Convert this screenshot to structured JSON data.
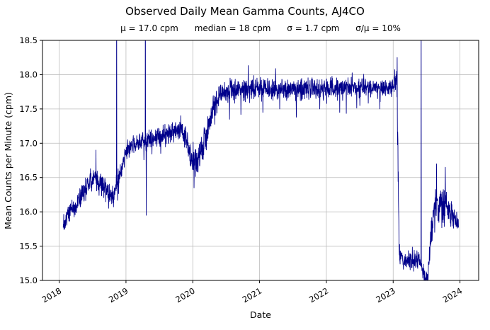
{
  "chart_data": {
    "type": "line",
    "title": "Observed Daily Mean Gamma Counts, AJ4CO",
    "subtitle": "μ = 17.0 cpm      median = 18 cpm      σ = 1.7 cpm      σ/μ = 10%",
    "stats": {
      "mu_cpm": 17.0,
      "median_cpm": 18,
      "sigma_cpm": 1.7,
      "sigma_over_mu_pct": 10
    },
    "xlabel": "Date",
    "ylabel": "Mean Counts per Minute (cpm)",
    "xlim": [
      2017.75,
      2024.28
    ],
    "ylim": [
      15.0,
      18.5
    ],
    "xticks": [
      2018,
      2019,
      2020,
      2021,
      2022,
      2023,
      2024
    ],
    "yticks": [
      15.0,
      15.5,
      16.0,
      16.5,
      17.0,
      17.5,
      18.0,
      18.5
    ],
    "grid": true,
    "legend": "none",
    "line_color": "#00008b",
    "grid_color": "#bdbdbd",
    "series_name": "daily mean gamma counts",
    "data_start": 2018.06,
    "data_end": 2023.98,
    "samples_per_year": 365,
    "noise_seed": 1337,
    "trend": [
      [
        2018.06,
        15.82,
        0.1
      ],
      [
        2018.14,
        16.0,
        0.09
      ],
      [
        2018.22,
        16.05,
        0.09
      ],
      [
        2018.32,
        16.2,
        0.09
      ],
      [
        2018.42,
        16.38,
        0.09
      ],
      [
        2018.52,
        16.5,
        0.1
      ],
      [
        2018.62,
        16.45,
        0.1
      ],
      [
        2018.72,
        16.28,
        0.09
      ],
      [
        2018.8,
        16.25,
        0.1
      ],
      [
        2018.87,
        16.45,
        0.1
      ],
      [
        2018.94,
        16.65,
        0.09
      ],
      [
        2019.02,
        16.92,
        0.08
      ],
      [
        2019.12,
        17.0,
        0.08
      ],
      [
        2019.25,
        17.02,
        0.08
      ],
      [
        2019.4,
        17.08,
        0.08
      ],
      [
        2019.55,
        17.12,
        0.09
      ],
      [
        2019.7,
        17.18,
        0.09
      ],
      [
        2019.82,
        17.22,
        0.09
      ],
      [
        2019.9,
        17.05,
        0.12
      ],
      [
        2019.98,
        16.75,
        0.14
      ],
      [
        2020.06,
        16.7,
        0.15
      ],
      [
        2020.14,
        16.95,
        0.12
      ],
      [
        2020.22,
        17.2,
        0.12
      ],
      [
        2020.32,
        17.55,
        0.1
      ],
      [
        2020.42,
        17.75,
        0.09
      ],
      [
        2020.6,
        17.78,
        0.09
      ],
      [
        2021.0,
        17.8,
        0.09
      ],
      [
        2021.5,
        17.8,
        0.09
      ],
      [
        2022.0,
        17.8,
        0.09
      ],
      [
        2022.5,
        17.82,
        0.09
      ],
      [
        2022.9,
        17.8,
        0.09
      ],
      [
        2023.02,
        17.85,
        0.1
      ],
      [
        2023.05,
        18.0,
        0.12
      ],
      [
        2023.07,
        17.0,
        0.2
      ],
      [
        2023.09,
        15.4,
        0.1
      ],
      [
        2023.15,
        15.3,
        0.08
      ],
      [
        2023.3,
        15.28,
        0.08
      ],
      [
        2023.4,
        15.3,
        0.08
      ],
      [
        2023.46,
        15.05,
        0.08
      ],
      [
        2023.52,
        15.0,
        0.08
      ],
      [
        2023.56,
        15.6,
        0.15
      ],
      [
        2023.62,
        16.05,
        0.18
      ],
      [
        2023.72,
        16.1,
        0.18
      ],
      [
        2023.82,
        16.05,
        0.15
      ],
      [
        2023.9,
        15.9,
        0.12
      ],
      [
        2023.98,
        15.8,
        0.08
      ]
    ],
    "spikes": [
      [
        2018.55,
        16.9
      ],
      [
        2018.86,
        19.6
      ],
      [
        2019.29,
        19.6
      ],
      [
        2019.305,
        15.95
      ],
      [
        2020.02,
        16.35
      ],
      [
        2020.55,
        17.35
      ],
      [
        2020.72,
        17.42
      ],
      [
        2021.05,
        17.45
      ],
      [
        2021.3,
        17.5
      ],
      [
        2021.55,
        17.38
      ],
      [
        2021.9,
        17.5
      ],
      [
        2022.2,
        17.45
      ],
      [
        2022.5,
        17.55
      ],
      [
        2022.8,
        17.5
      ],
      [
        2023.06,
        18.25
      ],
      [
        2023.42,
        19.0
      ],
      [
        2023.65,
        16.7
      ],
      [
        2023.78,
        16.65
      ]
    ]
  }
}
